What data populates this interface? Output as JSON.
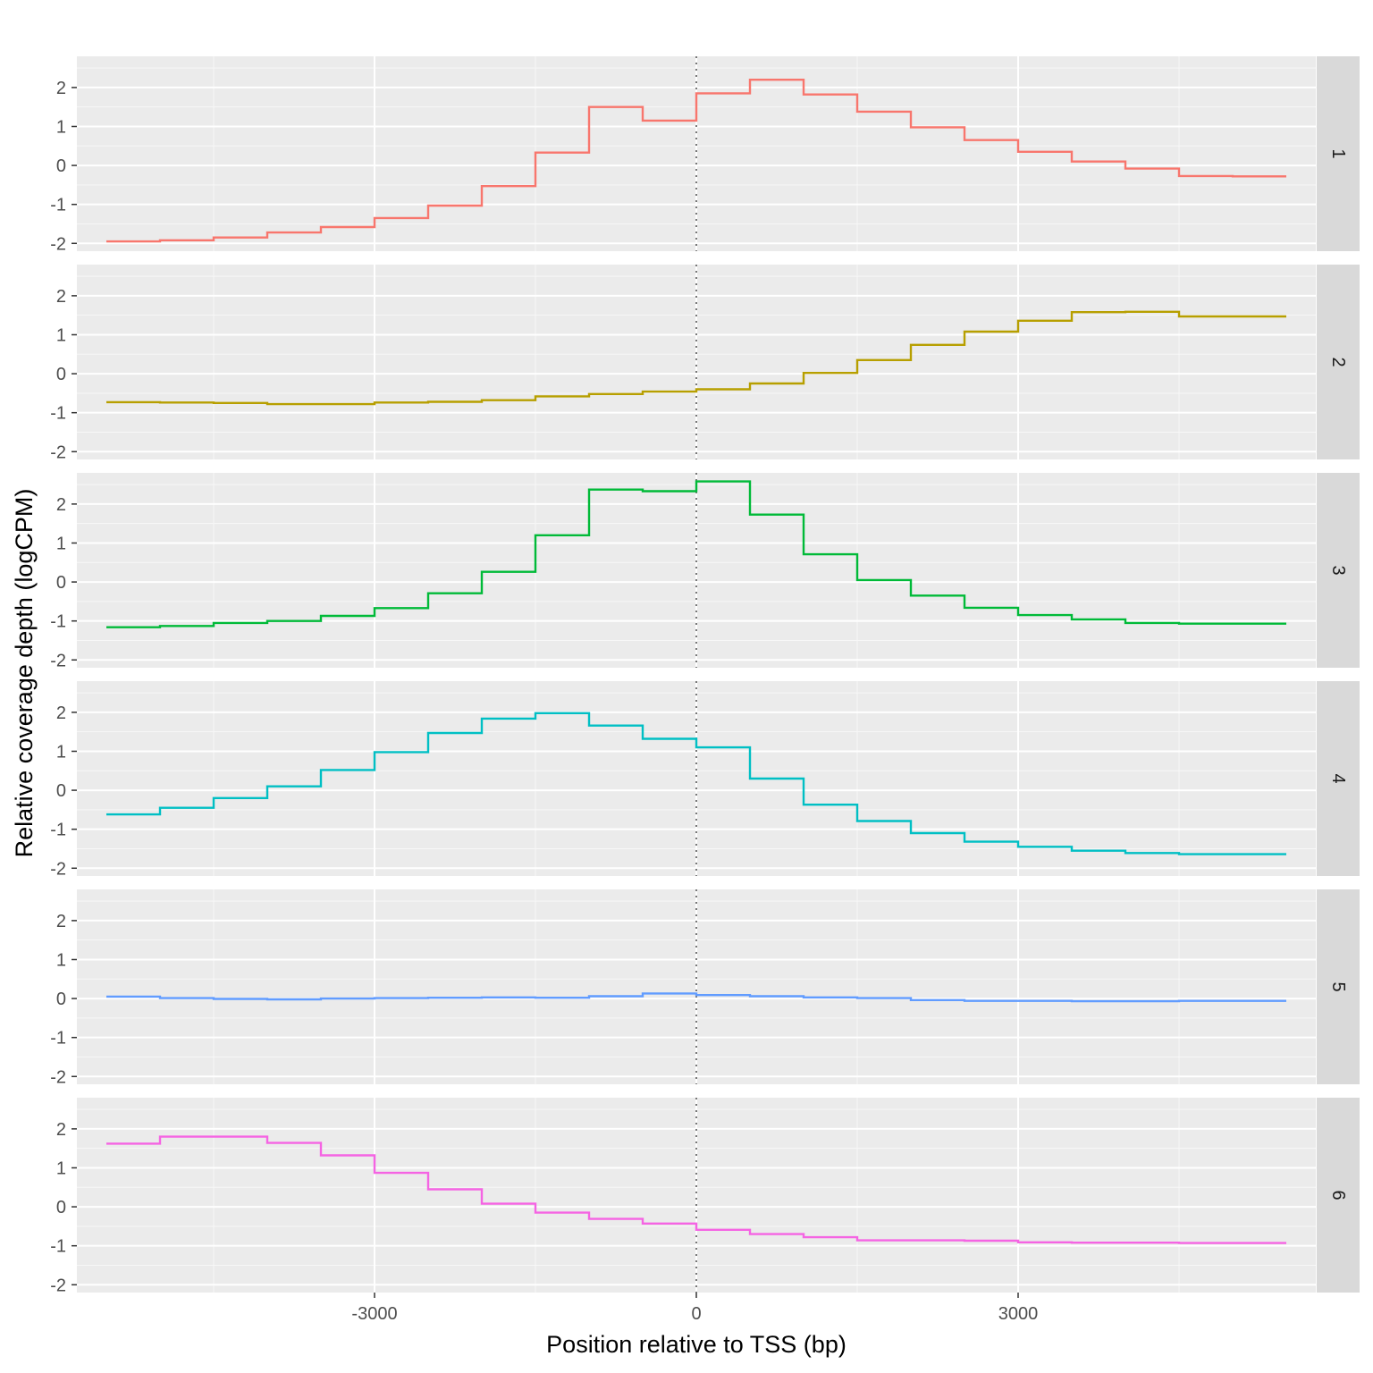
{
  "chart_data": {
    "type": "line",
    "step": true,
    "facet_layout": "rows",
    "xlabel": "Position relative to TSS (bp)",
    "ylabel": "Relative coverage depth (logCPM)",
    "x_ticks": [
      -3000,
      0,
      3000
    ],
    "x_tick_labels": [
      "-3000",
      "0",
      "3000"
    ],
    "y_ticks": [
      -2,
      -1,
      0,
      1,
      2
    ],
    "y_tick_labels": [
      "-2",
      "-1",
      "0",
      "1",
      "2"
    ],
    "xlim": [
      -5775,
      5775
    ],
    "ylim": [
      -2.2,
      2.8
    ],
    "grid": true,
    "reference_line": {
      "x": 0,
      "style": "dotted"
    },
    "x": [
      -5250,
      -4750,
      -4250,
      -3750,
      -3250,
      -2750,
      -2250,
      -1750,
      -1250,
      -750,
      -250,
      250,
      750,
      1250,
      1750,
      2250,
      2750,
      3250,
      3750,
      4250,
      4750,
      5250
    ],
    "series": [
      {
        "name": "1",
        "color": "#F8766D",
        "values": [
          -1.95,
          -1.92,
          -1.85,
          -1.72,
          -1.58,
          -1.35,
          -1.03,
          -0.53,
          0.33,
          1.5,
          1.15,
          1.85,
          2.2,
          1.82,
          1.38,
          0.98,
          0.65,
          0.35,
          0.1,
          -0.08,
          -0.27,
          -0.28
        ]
      },
      {
        "name": "2",
        "color": "#B79F00",
        "values": [
          -0.73,
          -0.74,
          -0.75,
          -0.78,
          -0.78,
          -0.74,
          -0.72,
          -0.68,
          -0.58,
          -0.52,
          -0.46,
          -0.4,
          -0.25,
          0.02,
          0.35,
          0.74,
          1.08,
          1.36,
          1.58,
          1.59,
          1.47,
          1.47
        ]
      },
      {
        "name": "3",
        "color": "#00BA38",
        "values": [
          -1.16,
          -1.13,
          -1.05,
          -1.0,
          -0.87,
          -0.67,
          -0.29,
          0.26,
          1.2,
          2.37,
          2.33,
          2.58,
          1.73,
          0.71,
          0.05,
          -0.35,
          -0.66,
          -0.85,
          -0.96,
          -1.05,
          -1.07,
          -1.07
        ]
      },
      {
        "name": "4",
        "color": "#00BFC4",
        "values": [
          -0.62,
          -0.45,
          -0.2,
          0.1,
          0.52,
          0.98,
          1.47,
          1.84,
          1.98,
          1.66,
          1.32,
          1.1,
          0.3,
          -0.37,
          -0.79,
          -1.1,
          -1.32,
          -1.45,
          -1.55,
          -1.61,
          -1.64,
          -1.64
        ]
      },
      {
        "name": "5",
        "color": "#619CFF",
        "values": [
          0.05,
          0.01,
          -0.01,
          -0.02,
          0.0,
          0.01,
          0.02,
          0.03,
          0.02,
          0.06,
          0.13,
          0.09,
          0.06,
          0.03,
          0.01,
          -0.04,
          -0.06,
          -0.06,
          -0.07,
          -0.07,
          -0.06,
          -0.06
        ]
      },
      {
        "name": "6",
        "color": "#F564E3",
        "values": [
          1.62,
          1.8,
          1.8,
          1.64,
          1.32,
          0.87,
          0.45,
          0.08,
          -0.15,
          -0.31,
          -0.43,
          -0.59,
          -0.7,
          -0.78,
          -0.86,
          -0.86,
          -0.87,
          -0.91,
          -0.92,
          -0.92,
          -0.93,
          -0.93
        ]
      }
    ]
  }
}
